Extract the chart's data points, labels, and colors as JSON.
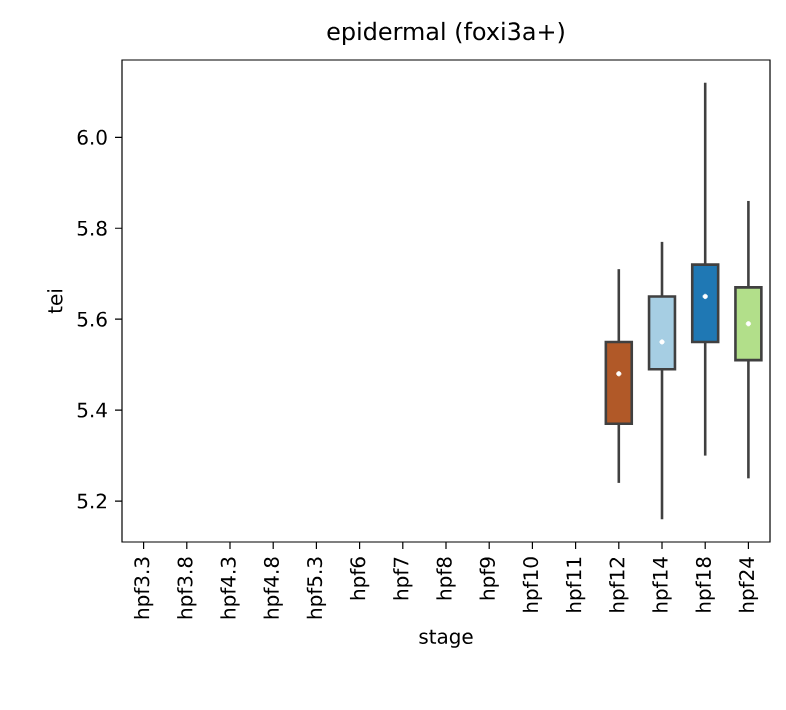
{
  "chart_data": {
    "type": "box",
    "title": "epidermal (foxi3a+)",
    "xlabel": "stage",
    "ylabel": "tei",
    "categories": [
      "hpf3.3",
      "hpf3.8",
      "hpf4.3",
      "hpf4.8",
      "hpf5.3",
      "hpf6",
      "hpf7",
      "hpf8",
      "hpf9",
      "hpf10",
      "hpf11",
      "hpf12",
      "hpf14",
      "hpf18",
      "hpf24"
    ],
    "colors": [
      null,
      null,
      null,
      null,
      null,
      null,
      null,
      null,
      null,
      null,
      null,
      "#b15928",
      "#a6cee3",
      "#1f78b4",
      "#b2df8a"
    ],
    "boxes": [
      null,
      null,
      null,
      null,
      null,
      null,
      null,
      null,
      null,
      null,
      null,
      {
        "low": 5.24,
        "q1": 5.37,
        "median": 5.48,
        "q3": 5.55,
        "high": 5.71
      },
      {
        "low": 5.16,
        "q1": 5.49,
        "median": 5.55,
        "q3": 5.65,
        "high": 5.77
      },
      {
        "low": 5.3,
        "q1": 5.55,
        "median": 5.65,
        "q3": 5.72,
        "high": 6.12
      },
      {
        "low": 5.25,
        "q1": 5.51,
        "median": 5.59,
        "q3": 5.67,
        "high": 5.86
      }
    ],
    "ylim": [
      5.11,
      6.17
    ],
    "yticks": [
      5.2,
      5.4,
      5.6,
      5.8,
      {
        "value": 6.0,
        "label": "6.0"
      }
    ]
  }
}
